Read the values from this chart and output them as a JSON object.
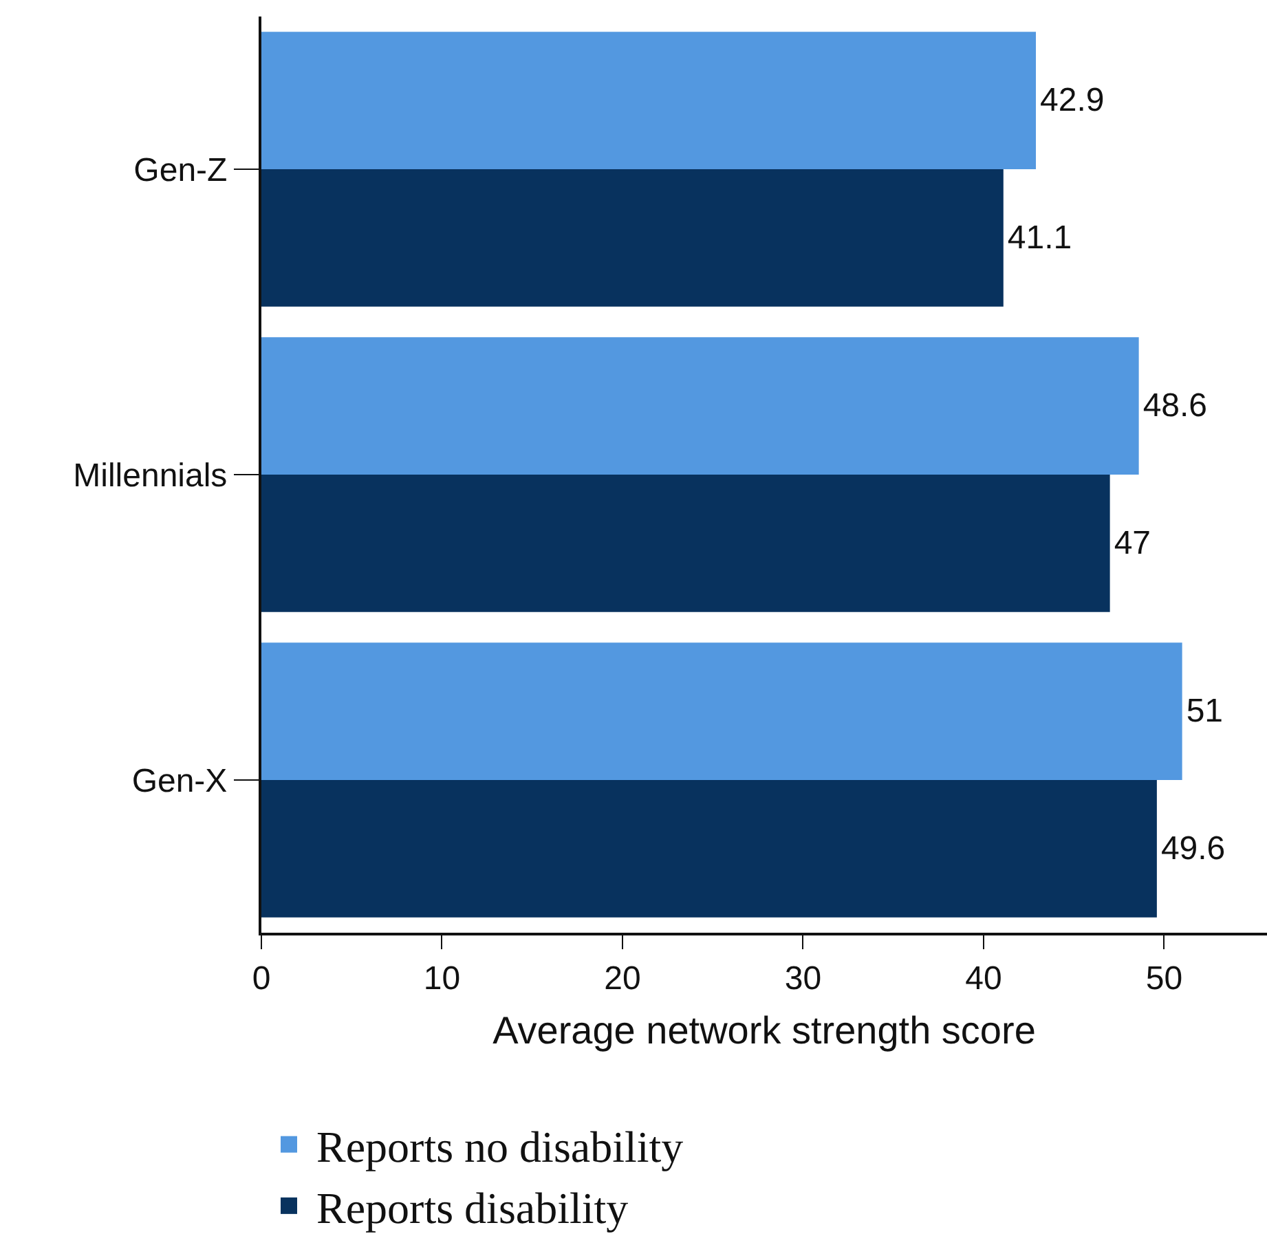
{
  "chart_data": {
    "type": "bar",
    "orientation": "horizontal",
    "categories": [
      "Gen-Z",
      "Millennials",
      "Gen-X"
    ],
    "series": [
      {
        "name": "Reports no disability",
        "color": "#5398e0",
        "values": [
          42.9,
          48.6,
          51
        ]
      },
      {
        "name": "Reports disability",
        "color": "#08325e",
        "values": [
          41.1,
          47,
          49.6
        ]
      }
    ],
    "xlabel": "Average network strength score",
    "xlim": [
      0,
      55.7
    ],
    "xticks": [
      0,
      10,
      20,
      30,
      40,
      50
    ],
    "data_labels": true,
    "legend": "bottom"
  }
}
